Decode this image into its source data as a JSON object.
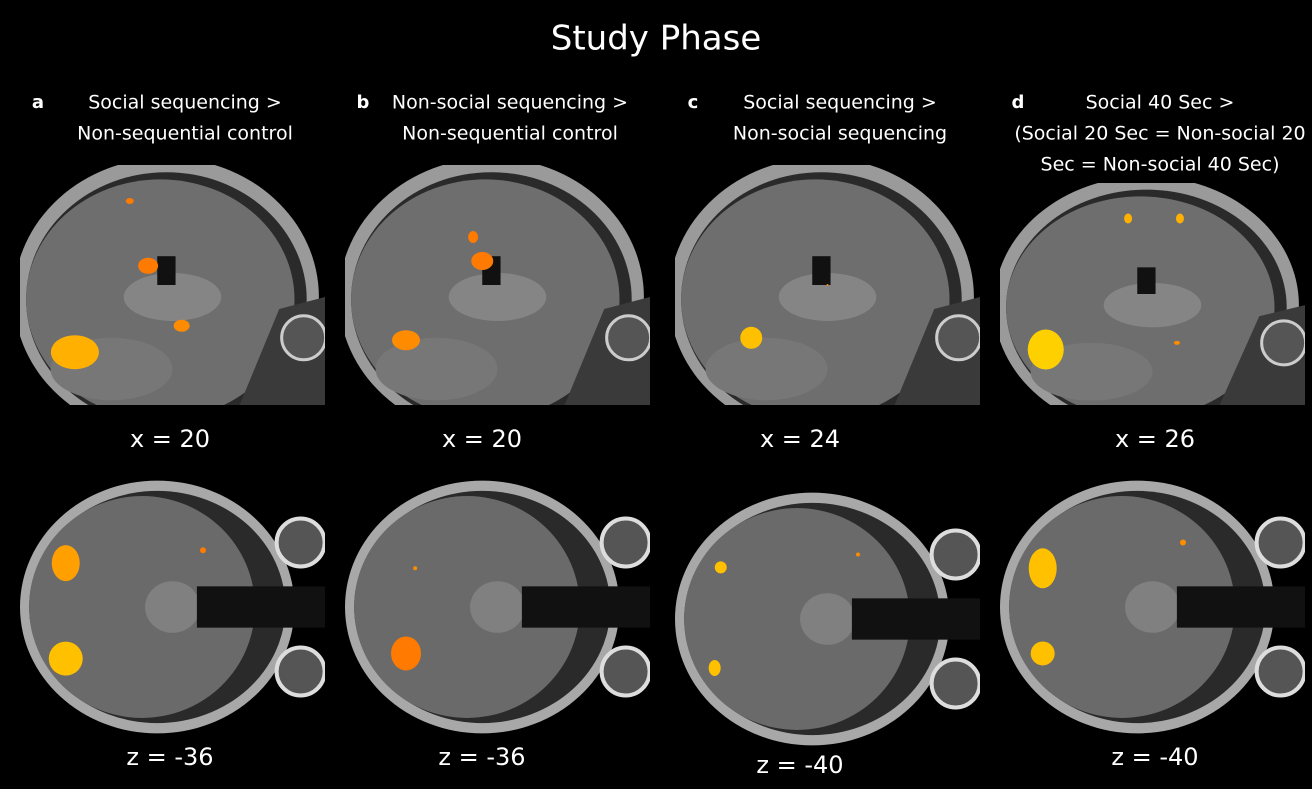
{
  "title": "Study Phase",
  "panels": [
    {
      "letter": "a",
      "label": [
        "Social sequencing >",
        "Non-sequential control"
      ],
      "sagittal": "x = 20",
      "axial": "z = -36"
    },
    {
      "letter": "b",
      "label": [
        "Non-social sequencing >",
        "Non-sequential control"
      ],
      "sagittal": "x = 20",
      "axial": "z = -36"
    },
    {
      "letter": "c",
      "label": [
        "Social sequencing >",
        "Non-social sequencing"
      ],
      "sagittal": "x = 24",
      "axial": "z = -40"
    },
    {
      "letter": "d",
      "label": [
        "Social 40 Sec >",
        "(Social 20 Sec = Non-social 20",
        "Sec = Non-social 40 Sec)"
      ],
      "sagittal": "x = 26",
      "axial": "z = -40"
    }
  ]
}
